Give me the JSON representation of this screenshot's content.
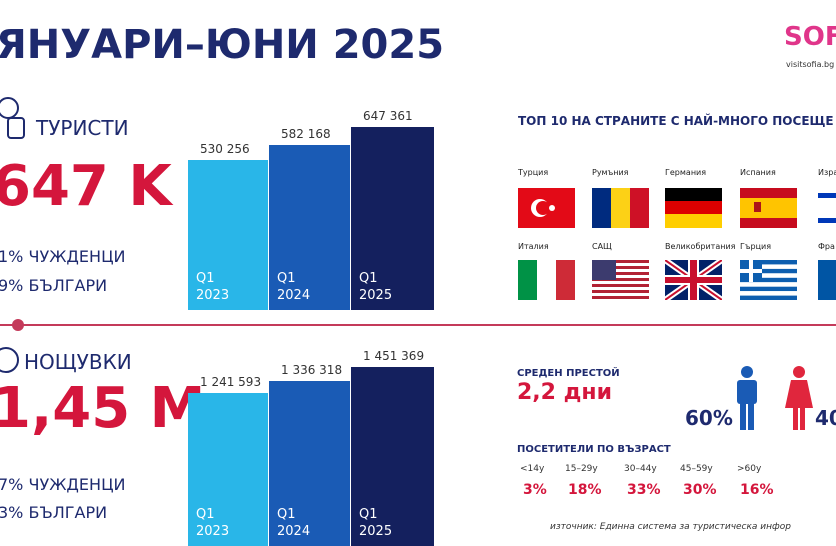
{
  "header": {
    "title": "ЯНУАРИ–ЮНИ 2025",
    "logo": "SOFIA",
    "logo_url": "visitsofia.bg"
  },
  "tourists": {
    "label": "ТУРИСТИ",
    "total": "647 K",
    "foreign": "1% ЧУЖДЕНЦИ",
    "bulgarian": "9% БЪЛГАРИ",
    "chart": {
      "type": "bar",
      "categories": [
        "Q1 2023",
        "Q1 2024",
        "Q1 2025"
      ],
      "values": [
        530256,
        582168,
        647361
      ],
      "value_labels": [
        "530 256",
        "582 168",
        "647 361"
      ],
      "colors": [
        "#29b6e8",
        "#1a5bb5",
        "#14205e"
      ]
    }
  },
  "nights": {
    "label": "НОЩУВКИ",
    "total": "1,45 M",
    "foreign": "7% ЧУЖДЕНЦИ",
    "bulgarian": "3% БЪЛГАРИ",
    "chart": {
      "type": "bar",
      "categories": [
        "Q1 2023",
        "Q1 2024",
        "Q1 2025"
      ],
      "values": [
        1241593,
        1336318,
        1451369
      ],
      "value_labels": [
        "1 241 593",
        "1 336 318",
        "1 451 369"
      ],
      "colors": [
        "#29b6e8",
        "#1a5bb5",
        "#14205e"
      ]
    }
  },
  "top_countries": {
    "title": "ТОП 10 НА СТРАНИТЕ С НАЙ-МНОГО ПОСЕЩЕ",
    "countries": [
      "Турция",
      "Румъния",
      "Германия",
      "Испания",
      "Изра",
      "Италия",
      "САЩ",
      "Великобритания",
      "Гърция",
      "Фра"
    ]
  },
  "stay": {
    "label": "СРЕДЕН ПРЕСТОЙ",
    "value": "2,2 дни",
    "male": "60%",
    "female": "40"
  },
  "age": {
    "title": "ПОСЕТИТЕЛИ ПО ВЪЗРАСТ",
    "groups": [
      {
        "label": "<14у",
        "value": "3%"
      },
      {
        "label": "15–29у",
        "value": "18%"
      },
      {
        "label": "30–44у",
        "value": "33%"
      },
      {
        "label": "45–59у",
        "value": "30%"
      },
      {
        "label": ">60у",
        "value": "16%"
      }
    ]
  },
  "source": "източник: Единна система за туристическа инфор"
}
